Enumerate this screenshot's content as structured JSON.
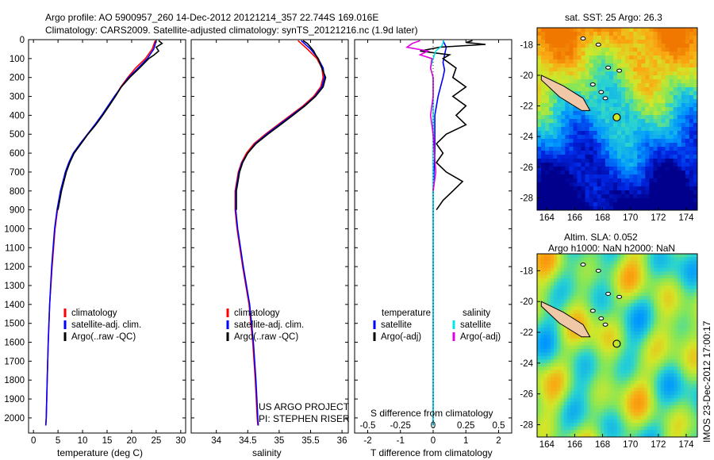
{
  "header": {
    "title_line1": "Argo profile: AO 5900957_260 14-Dec-2012 20121214_357 22.744S 169.016E",
    "title_line2": "Climatology: CARS2009. Satellite-adjusted climatology: synTS_20121216.nc (1.9d later)"
  },
  "footer": {
    "project": "US ARGO PROJECT",
    "pi": "PI: STEPHEN RISER",
    "imos_stamp": "IMOS 23-Dec-2012 17:00:17"
  },
  "colors": {
    "climatology": "#ff0000",
    "satellite": "#0000ff",
    "argo": "#000000",
    "sal_satellite": "#00e5e5",
    "sal_argo": "#e000e0",
    "land": "#f0c8a8"
  },
  "chart_data": [
    {
      "id": "temperature",
      "type": "line",
      "xlabel": "temperature (deg C)",
      "ylabel": "",
      "xlim": [
        -1,
        31
      ],
      "ylim": [
        2080,
        0
      ],
      "xticks": [
        0,
        5,
        10,
        15,
        20,
        25,
        30
      ],
      "yticks": [
        0,
        100,
        200,
        300,
        400,
        500,
        600,
        700,
        800,
        900,
        1000,
        1100,
        1200,
        1300,
        1400,
        1500,
        1600,
        1700,
        1800,
        1900,
        2000
      ],
      "legend": [
        "climatology",
        "satellite-adj. clim.",
        "Argo(..raw -QC)"
      ],
      "series": [
        {
          "name": "climatology",
          "color": "#ff0000",
          "depth": [
            5,
            50,
            100,
            150,
            200,
            250,
            300,
            350,
            400,
            450,
            500,
            550,
            600,
            650,
            700,
            800,
            900,
            1000,
            1200,
            1400,
            1600,
            1800,
            2000,
            2040
          ],
          "values": [
            24.8,
            24.2,
            22.8,
            20.8,
            19.2,
            17.8,
            16.6,
            15.3,
            14.0,
            12.6,
            11.0,
            9.5,
            8.2,
            7.3,
            6.6,
            5.6,
            4.9,
            4.4,
            3.8,
            3.3,
            3.0,
            2.8,
            2.6,
            2.5
          ]
        },
        {
          "name": "satellite-adj. clim.",
          "color": "#0000ff",
          "depth": [
            5,
            50,
            100,
            150,
            200,
            250,
            300,
            350,
            400,
            450,
            500,
            550,
            600,
            650,
            700,
            800,
            900,
            1000,
            1200,
            1400,
            1600,
            1800,
            2000,
            2040
          ],
          "values": [
            25.0,
            24.5,
            23.2,
            21.3,
            19.4,
            17.9,
            16.5,
            15.2,
            13.9,
            12.5,
            11.0,
            9.5,
            8.1,
            7.2,
            6.5,
            5.5,
            4.8,
            4.3,
            3.7,
            3.3,
            3.0,
            2.8,
            2.6,
            2.5
          ]
        },
        {
          "name": "Argo(..raw -QC)",
          "color": "#000000",
          "depth": [
            5,
            20,
            40,
            60,
            80,
            100,
            150,
            200,
            250,
            300,
            350,
            400,
            450,
            500,
            550,
            600,
            650,
            700,
            800,
            900
          ],
          "values": [
            25.5,
            26.2,
            25.0,
            25.5,
            24.6,
            23.5,
            21.6,
            19.6,
            17.9,
            16.7,
            15.4,
            14.1,
            12.7,
            11.1,
            9.7,
            8.3,
            7.4,
            6.7,
            5.7,
            5.0
          ]
        }
      ]
    },
    {
      "id": "salinity",
      "type": "line",
      "xlabel": "salinity",
      "ylabel": "",
      "xlim": [
        33.6,
        36.1
      ],
      "ylim": [
        2080,
        0
      ],
      "xticks": [
        34,
        34.5,
        35,
        35.5,
        36
      ],
      "legend": [
        "climatology",
        "satellite-adj. clim.",
        "Argo(..raw -QC)"
      ],
      "series": [
        {
          "name": "climatology",
          "color": "#ff0000",
          "depth": [
            5,
            50,
            100,
            150,
            200,
            250,
            300,
            350,
            400,
            450,
            500,
            550,
            600,
            650,
            700,
            800,
            900,
            1000,
            1200,
            1400,
            1600,
            1800,
            2000,
            2040
          ],
          "values": [
            35.3,
            35.45,
            35.6,
            35.68,
            35.7,
            35.66,
            35.55,
            35.38,
            35.18,
            34.98,
            34.78,
            34.6,
            34.48,
            34.4,
            34.35,
            34.3,
            34.3,
            34.33,
            34.42,
            34.52,
            34.58,
            34.62,
            34.65,
            34.66
          ]
        },
        {
          "name": "satellite-adj. clim.",
          "color": "#0000ff",
          "depth": [
            5,
            50,
            100,
            150,
            200,
            250,
            300,
            350,
            400,
            450,
            500,
            550,
            600,
            650,
            700,
            800,
            900,
            1000,
            1200,
            1400,
            1600,
            1800,
            2000,
            2040
          ],
          "values": [
            35.35,
            35.5,
            35.62,
            35.7,
            35.72,
            35.68,
            35.57,
            35.4,
            35.2,
            35.0,
            34.8,
            34.62,
            34.5,
            34.41,
            34.36,
            34.31,
            34.31,
            34.34,
            34.43,
            34.53,
            34.59,
            34.63,
            34.66,
            34.67
          ]
        },
        {
          "name": "Argo(..raw -QC)",
          "color": "#000000",
          "depth": [
            5,
            20,
            40,
            60,
            80,
            100,
            150,
            200,
            250,
            300,
            350,
            400,
            450,
            500,
            550,
            600,
            650,
            700,
            800,
            900
          ],
          "values": [
            35.38,
            35.45,
            35.5,
            35.55,
            35.58,
            35.62,
            35.68,
            35.74,
            35.7,
            35.58,
            35.41,
            35.22,
            35.02,
            34.82,
            34.63,
            34.5,
            34.42,
            34.37,
            34.32,
            34.32
          ]
        }
      ]
    },
    {
      "id": "difference",
      "type": "line",
      "xlabel": "T difference from climatology",
      "xlabel_top": "S difference from climatology",
      "xlim": [
        -2.4,
        2.4
      ],
      "ylim": [
        2080,
        0
      ],
      "xticks_T": [
        -2,
        -1,
        0,
        1,
        2
      ],
      "xticks_S": [
        "-0.5",
        "-0.25",
        "0",
        "0.25",
        "0.5"
      ],
      "legend_heading_T": "temperature",
      "legend_heading_S": "salinity",
      "legend": [
        "satellite",
        "Argo(-adj)",
        "satellite",
        "Argo(-adj)"
      ],
      "series": [
        {
          "name": "T satellite",
          "color": "#0000ff",
          "depth": [
            5,
            40,
            80,
            120,
            160,
            200,
            300,
            400,
            600,
            800,
            1000,
            2040
          ],
          "values": [
            0.3,
            0.4,
            0.35,
            0.3,
            0.35,
            0.3,
            0.15,
            0.05,
            0.05,
            0.0,
            0.0,
            0.0
          ]
        },
        {
          "name": "T Argo(-adj)",
          "color": "#000000",
          "depth": [
            5,
            15,
            25,
            40,
            60,
            80,
            100,
            150,
            200,
            250,
            300,
            350,
            400,
            450,
            500,
            550,
            600,
            650,
            700,
            750,
            800,
            850,
            900
          ],
          "values": [
            1.2,
            1.0,
            1.6,
            0.2,
            -0.4,
            0.5,
            0.3,
            0.7,
            0.6,
            1.0,
            0.6,
            1.0,
            0.7,
            1.0,
            0.4,
            0.1,
            0.3,
            0.1,
            0.4,
            0.9,
            0.6,
            0.3,
            0.1
          ]
        },
        {
          "name": "S satellite",
          "color": "#00e5e5",
          "depth": [
            5,
            30,
            60,
            100,
            150,
            200,
            400,
            600,
            800,
            1000,
            1500,
            2040
          ],
          "values": [
            0.08,
            0.07,
            0.02,
            0.0,
            -0.02,
            0.0,
            0.0,
            0.0,
            0.0,
            0.0,
            0.0,
            0.0
          ]
        },
        {
          "name": "S Argo(-adj)",
          "color": "#e000e0",
          "depth": [
            5,
            20,
            40,
            60,
            80,
            100,
            150,
            200,
            300,
            400,
            500,
            600,
            700,
            800
          ],
          "values": [
            -0.1,
            -0.16,
            -0.2,
            -0.04,
            -0.1,
            -0.01,
            -0.02,
            0.0,
            0.0,
            -0.02,
            0.0,
            0.01,
            0.02,
            0.0
          ]
        }
      ]
    },
    {
      "id": "sst_map",
      "type": "heatmap",
      "title": "sat. SST: 25 Argo: 26.3",
      "xticks": [
        164,
        166,
        168,
        170,
        172,
        174
      ],
      "yticks": [
        -18,
        -20,
        -22,
        -24,
        -26,
        -28
      ],
      "argo_position": [
        169.016,
        -22.744
      ]
    },
    {
      "id": "sla_map",
      "type": "heatmap",
      "title": "Altim. SLA: 0.052",
      "subtitle": "Argo h1000: NaN h2000: NaN",
      "xticks": [
        164,
        166,
        168,
        170,
        172,
        174
      ],
      "yticks": [
        -18,
        -20,
        -22,
        -24,
        -26,
        -28
      ],
      "argo_position": [
        169.016,
        -22.744
      ]
    }
  ]
}
